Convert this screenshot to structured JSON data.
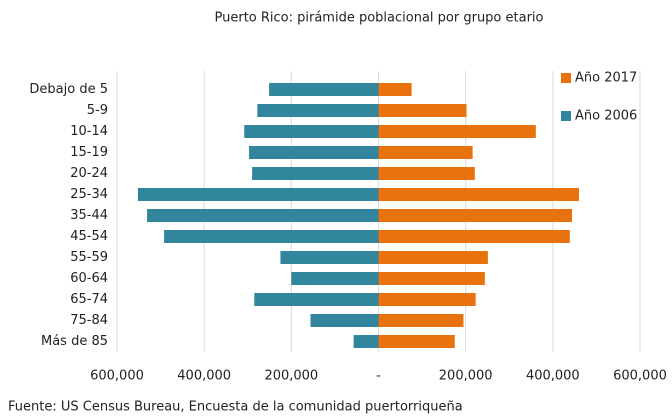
{
  "chart_data": {
    "type": "pyramid",
    "title": "Puerto Rico: pirámide poblacional por grupo etario",
    "source": "Fuente: US Census Bureau, Encuesta de la comunidad puertorriqueña",
    "categories": [
      "Debajo de 5",
      "5-9",
      "10-14",
      "15-19",
      "20-24",
      "25-34",
      "35-44",
      "45-54",
      "55-59",
      "60-64",
      "65-74",
      "75-84",
      "Más de 85"
    ],
    "series": [
      {
        "name": "Año 2017",
        "color": "#e8730e",
        "values": [
          76000,
          202000,
          361000,
          216000,
          221000,
          460000,
          444000,
          439000,
          251000,
          244000,
          223000,
          195000,
          175000
        ]
      },
      {
        "name": "Año 2006",
        "color": "#31859c",
        "values": [
          -251000,
          -278000,
          -308000,
          -297000,
          -290000,
          -552000,
          -531000,
          -492000,
          -225000,
          -200000,
          -285000,
          -156000,
          -57000
        ]
      }
    ],
    "xlim": [
      -600000,
      600000
    ],
    "xticks": [
      {
        "value": -600000,
        "label": "600,000"
      },
      {
        "value": -400000,
        "label": "400,000"
      },
      {
        "value": -200000,
        "label": "200,000"
      },
      {
        "value": 0,
        "label": "-"
      },
      {
        "value": 200000,
        "label": "200,000"
      },
      {
        "value": 400000,
        "label": "400,000"
      },
      {
        "value": 600000,
        "label": "600,000"
      }
    ],
    "grid": true,
    "legend": "top-right"
  }
}
